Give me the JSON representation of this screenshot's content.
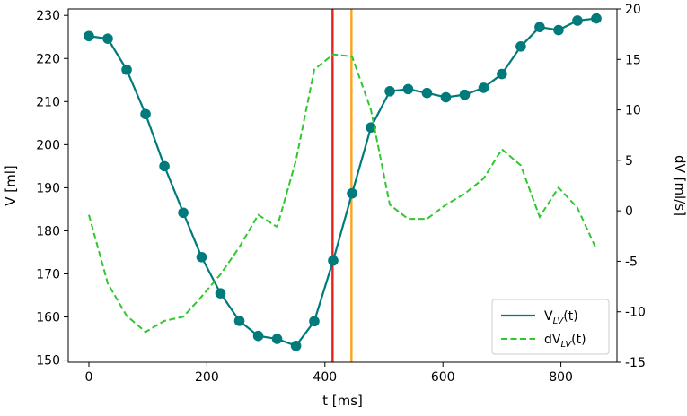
{
  "chart_data": {
    "type": "line",
    "xlabel": "t [ms]",
    "ylabel_left": "V [ml]",
    "ylabel_right": "dV [ml/s]",
    "xlim": [
      -35,
      895
    ],
    "ylim_left": [
      149.5,
      231.5
    ],
    "ylim_right": [
      -15,
      20
    ],
    "x_ticks": [
      0,
      200,
      400,
      600,
      800
    ],
    "y_left_ticks": [
      150,
      160,
      170,
      180,
      190,
      200,
      210,
      220,
      230
    ],
    "y_right_ticks": [
      -15,
      -10,
      -5,
      0,
      5,
      10,
      15,
      20
    ],
    "grid": false,
    "legend_position": "lower-right",
    "colors": {
      "volume": "#007a7a",
      "derivative": "#2ec82e",
      "line_red": "#e8221c",
      "line_orange": "#ffa21a"
    },
    "vertical_lines": [
      {
        "x": 413,
        "color": "red"
      },
      {
        "x": 445,
        "color": "orange"
      }
    ],
    "series": [
      {
        "name": "V",
        "name_sub": "LV",
        "name_suffix": "(t)",
        "axis": "left",
        "style": "solid-markers",
        "x": [
          0,
          32,
          64,
          96,
          128,
          160,
          191,
          223,
          255,
          287,
          319,
          351,
          382,
          414,
          446,
          478,
          510,
          541,
          573,
          605,
          637,
          669,
          700,
          732,
          764,
          796,
          828,
          860
        ],
        "y": [
          225.2,
          224.6,
          217.4,
          207.1,
          195.0,
          184.2,
          173.9,
          165.5,
          159.1,
          155.6,
          154.9,
          153.3,
          159.0,
          173.1,
          188.7,
          204.0,
          212.4,
          212.9,
          212.0,
          211.0,
          211.6,
          213.2,
          216.4,
          222.8,
          227.3,
          226.6,
          228.8,
          229.3
        ]
      },
      {
        "name": "dV",
        "name_sub": "LV",
        "name_suffix": "(t)",
        "axis": "right",
        "style": "dashed",
        "x": [
          0,
          32,
          64,
          96,
          128,
          160,
          191,
          223,
          255,
          287,
          319,
          351,
          382,
          414,
          446,
          478,
          510,
          541,
          573,
          605,
          637,
          669,
          700,
          732,
          764,
          796,
          828,
          860
        ],
        "y": [
          -0.4,
          -7.2,
          -10.4,
          -12.0,
          -10.9,
          -10.5,
          -8.5,
          -6.3,
          -3.6,
          -0.4,
          -1.6,
          5.0,
          14.0,
          15.5,
          15.3,
          10.0,
          0.6,
          -0.8,
          -0.8,
          0.6,
          1.7,
          3.2,
          6.1,
          4.5,
          -0.6,
          2.3,
          0.3,
          -3.8
        ]
      }
    ]
  }
}
